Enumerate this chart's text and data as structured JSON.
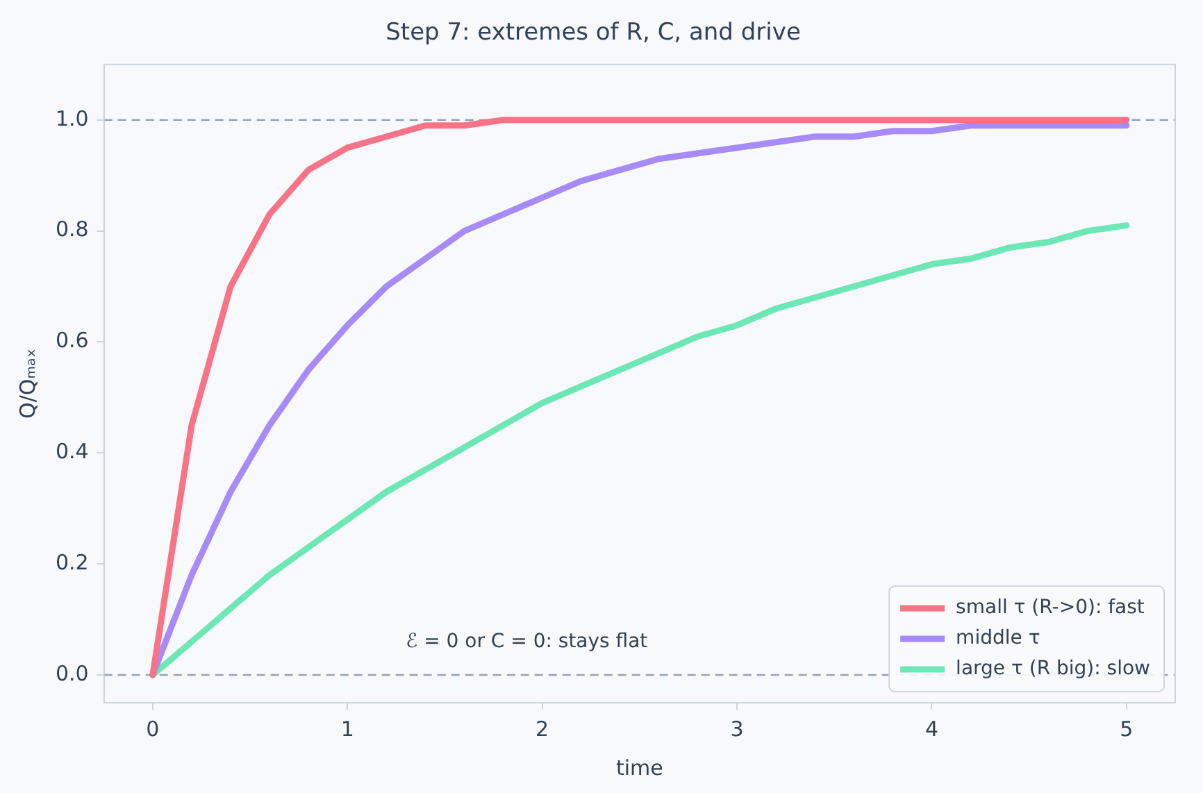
{
  "chart_data": {
    "type": "line",
    "title": "Step 7: extremes of R, C, and drive",
    "xlabel": "time",
    "ylabel": "Q/Qₘₐₓ",
    "x": [
      0,
      0.2,
      0.4,
      0.6,
      0.8,
      1,
      1.2,
      1.4,
      1.6,
      1.8,
      2,
      2.2,
      2.4,
      2.6,
      2.8,
      3,
      3.2,
      3.4,
      3.6,
      3.8,
      4,
      4.2,
      4.4,
      4.6,
      4.8,
      5
    ],
    "series": [
      {
        "name": "small τ (R->0): fast",
        "color": "#f87386",
        "values": [
          0,
          0.45,
          0.7,
          0.83,
          0.91,
          0.95,
          0.97,
          0.99,
          0.99,
          1.0,
          1.0,
          1.0,
          1.0,
          1.0,
          1.0,
          1.0,
          1.0,
          1.0,
          1.0,
          1.0,
          1.0,
          1.0,
          1.0,
          1.0,
          1.0,
          1.0
        ]
      },
      {
        "name": "middle τ",
        "color": "#a78bfa",
        "values": [
          0,
          0.18,
          0.33,
          0.45,
          0.55,
          0.63,
          0.7,
          0.75,
          0.8,
          0.83,
          0.86,
          0.89,
          0.91,
          0.93,
          0.94,
          0.95,
          0.96,
          0.97,
          0.97,
          0.98,
          0.98,
          0.99,
          0.99,
          0.99,
          0.99,
          0.99
        ]
      },
      {
        "name": "large τ (R big): slow",
        "color": "#6ee7b7",
        "values": [
          0,
          0.06,
          0.12,
          0.18,
          0.23,
          0.28,
          0.33,
          0.37,
          0.41,
          0.45,
          0.49,
          0.52,
          0.55,
          0.58,
          0.61,
          0.63,
          0.66,
          0.68,
          0.7,
          0.72,
          0.74,
          0.75,
          0.77,
          0.78,
          0.8,
          0.81
        ]
      }
    ],
    "xlim": [
      -0.25,
      5.25
    ],
    "ylim": [
      -0.05,
      1.1
    ],
    "xticks": [
      0,
      1,
      2,
      3,
      4,
      5
    ],
    "yticks": [
      {
        "value": 0,
        "label": "0.0"
      },
      {
        "value": 0.2,
        "label": "0.2"
      },
      {
        "value": 0.4,
        "label": "0.4"
      },
      {
        "value": 0.6,
        "label": "0.6"
      },
      {
        "value": 0.8,
        "label": "0.8"
      },
      {
        "value": 1,
        "label": "1.0"
      }
    ],
    "ref_lines": [
      {
        "axis": "y",
        "value": 0,
        "color": "#94a3b8",
        "line_style": "dashed"
      },
      {
        "axis": "y",
        "value": 1,
        "color": "#94a3b8",
        "line_style": "dashed"
      }
    ],
    "annotations": [
      "ℰ = 0 or C = 0: stays flat"
    ],
    "legend": "bottom right",
    "grid": false,
    "marker": "none",
    "line_style": "solid"
  }
}
